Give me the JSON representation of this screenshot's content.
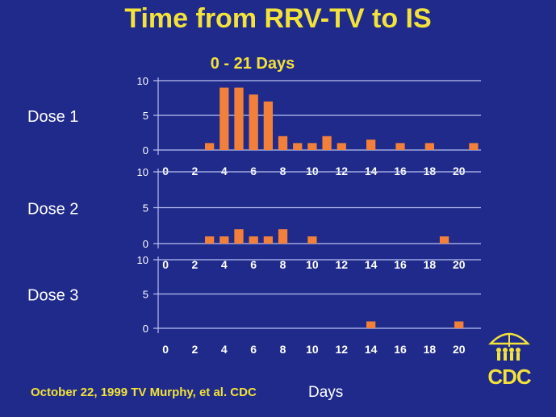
{
  "title": "Time from RRV-TV to IS",
  "subtitle": "0 - 21 Days",
  "footer": "October 22, 1999 TV Murphy, et al. CDC",
  "logo_text": "CDC",
  "colors": {
    "background": "#1f2a8a",
    "bar": "#f2803a",
    "title": "#f2e23a",
    "grid": "#b9c2f2"
  },
  "chart_data": [
    {
      "type": "bar",
      "panel_label": "Dose 1",
      "x": [
        3,
        4,
        5,
        6,
        7,
        8,
        9,
        10,
        11,
        12,
        14,
        16,
        18,
        21
      ],
      "values": [
        1,
        9,
        9,
        8,
        7,
        2,
        1,
        1,
        2,
        1,
        1.5,
        1,
        1,
        1
      ],
      "xlim": [
        0,
        21
      ],
      "ylim": [
        0,
        10
      ],
      "xticks": [
        0,
        2,
        4,
        6,
        8,
        10,
        12,
        14,
        16,
        18,
        20
      ],
      "yticks": [
        0,
        5,
        10
      ],
      "xlabel": "",
      "grid": true
    },
    {
      "type": "bar",
      "panel_label": "Dose 2",
      "x": [
        3,
        4,
        5,
        6,
        7,
        8,
        10,
        19
      ],
      "values": [
        1,
        1,
        2,
        1,
        1,
        2,
        1,
        1
      ],
      "xlim": [
        0,
        21
      ],
      "ylim": [
        0,
        10
      ],
      "xticks": [
        0,
        2,
        4,
        6,
        8,
        10,
        12,
        14,
        16,
        18,
        20
      ],
      "yticks": [
        0,
        5,
        10
      ],
      "xlabel": "",
      "grid": true
    },
    {
      "type": "bar",
      "panel_label": "Dose 3",
      "x": [
        14,
        20
      ],
      "values": [
        1,
        1
      ],
      "xlim": [
        0,
        21
      ],
      "ylim": [
        0,
        10
      ],
      "xticks": [
        0,
        2,
        4,
        6,
        8,
        10,
        12,
        14,
        16,
        18,
        20
      ],
      "yticks": [
        0,
        5,
        10
      ],
      "xlabel": "Days",
      "grid": true
    }
  ]
}
